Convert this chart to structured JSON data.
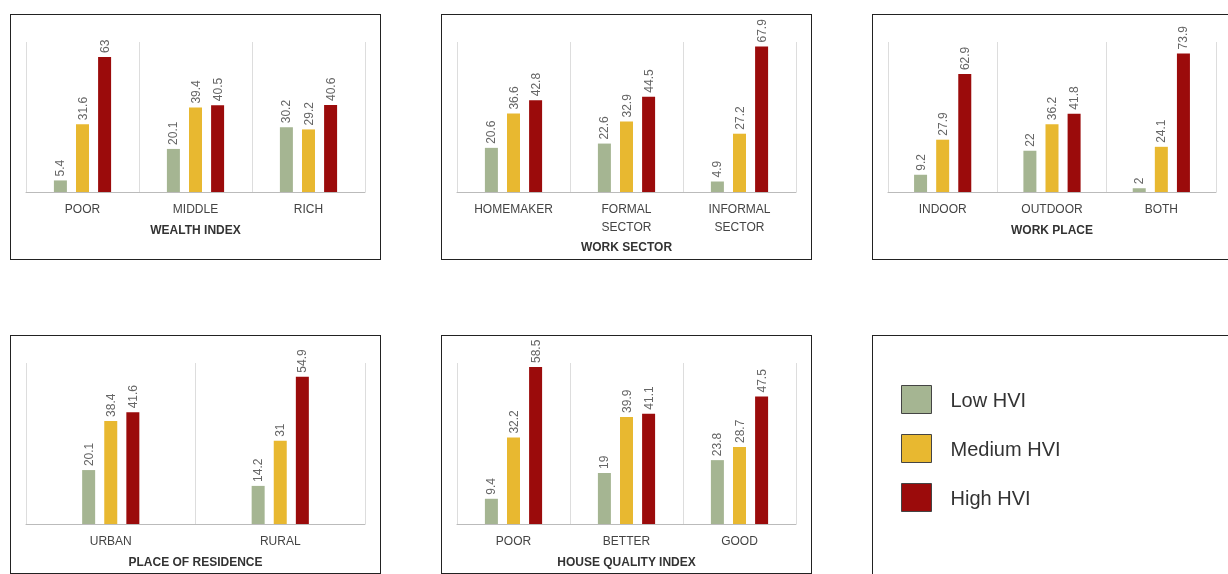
{
  "chart_data": [
    {
      "type": "bar",
      "xlabel": "WEALTH INDEX",
      "categories": [
        "POOR",
        "MIDDLE",
        "RICH"
      ],
      "data_labels": true,
      "grid": "x",
      "series": [
        {
          "color": "#a5b592",
          "values": [
            5.4,
            20.1,
            30.2
          ]
        },
        {
          "color": "#e8b830",
          "values": [
            31.6,
            39.4,
            29.2
          ]
        },
        {
          "color": "#9b0b0b",
          "values": [
            63,
            40.5,
            40.6
          ]
        }
      ]
    },
    {
      "type": "bar",
      "xlabel": "WORK SECTOR",
      "categories": [
        "HOMEMAKER",
        "FORMAL SECTOR",
        "INFORMAL SECTOR"
      ],
      "data_labels": true,
      "grid": "x",
      "series": [
        {
          "color": "#a5b592",
          "values": [
            20.6,
            22.6,
            4.9
          ]
        },
        {
          "color": "#e8b830",
          "values": [
            36.6,
            32.9,
            27.2
          ]
        },
        {
          "color": "#9b0b0b",
          "values": [
            42.8,
            44.5,
            67.9
          ]
        }
      ]
    },
    {
      "type": "bar",
      "xlabel": "WORK PLACE",
      "categories": [
        "INDOOR",
        "OUTDOOR",
        "BOTH"
      ],
      "data_labels": true,
      "grid": "x",
      "series": [
        {
          "color": "#a5b592",
          "values": [
            9.2,
            22,
            2
          ]
        },
        {
          "color": "#e8b830",
          "values": [
            27.9,
            36.2,
            24.1
          ]
        },
        {
          "color": "#9b0b0b",
          "values": [
            62.9,
            41.8,
            73.9
          ]
        }
      ]
    },
    {
      "type": "bar",
      "xlabel": "PLACE OF RESIDENCE",
      "categories": [
        "URBAN",
        "RURAL"
      ],
      "data_labels": true,
      "grid": "x",
      "series": [
        {
          "color": "#a5b592",
          "values": [
            20.1,
            14.2
          ]
        },
        {
          "color": "#e8b830",
          "values": [
            38.4,
            31
          ]
        },
        {
          "color": "#9b0b0b",
          "values": [
            41.6,
            54.9
          ]
        }
      ]
    },
    {
      "type": "bar",
      "xlabel": "HOUSE QUALITY INDEX",
      "categories": [
        "POOR",
        "BETTER",
        "GOOD"
      ],
      "data_labels": true,
      "grid": "x",
      "legend": "right",
      "series": [
        {
          "name": "Low HVI",
          "color": "#a5b592",
          "values": [
            9.4,
            19,
            23.8
          ]
        },
        {
          "name": "Medium HVI",
          "color": "#e8b830",
          "values": [
            32.2,
            39.9,
            28.7
          ]
        },
        {
          "name": "High HVI",
          "color": "#9b0b0b",
          "values": [
            58.5,
            41.1,
            47.5
          ]
        }
      ]
    }
  ]
}
